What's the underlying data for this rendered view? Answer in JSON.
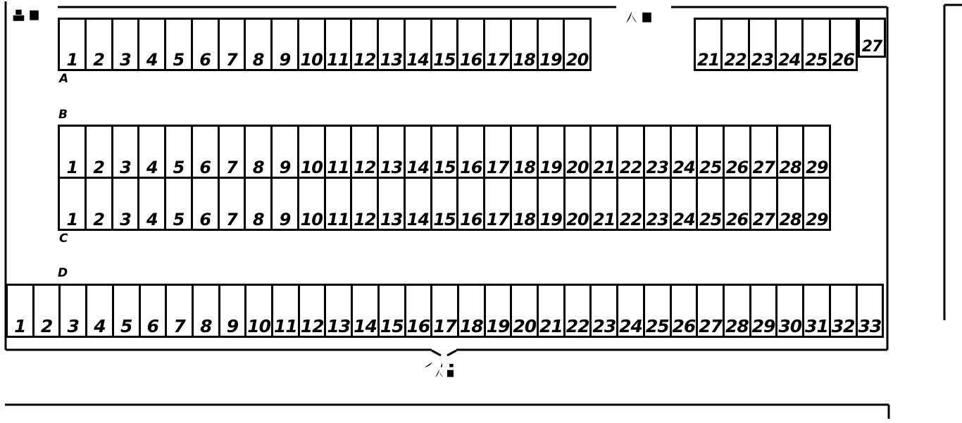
{
  "colors": {
    "line": "#000000",
    "background": "#ffffff",
    "text": "#000000"
  },
  "labels": {
    "exit": "出口",
    "entrance": "入口",
    "pedestrian_entrance_line1": "歩行者用",
    "pedestrian_entrance_line2": "入口"
  },
  "rows": {
    "a": {
      "label": "A",
      "section1_spaces": [
        "1",
        "2",
        "3",
        "4",
        "5",
        "6",
        "7",
        "8",
        "9",
        "10",
        "11",
        "12",
        "13",
        "14",
        "15",
        "16",
        "17",
        "18",
        "19",
        "20"
      ],
      "section2_spaces": [
        "21",
        "22",
        "23",
        "24",
        "25",
        "26"
      ],
      "section3_spaces": [
        "27"
      ]
    },
    "b": {
      "label": "B",
      "spaces": [
        "1",
        "2",
        "3",
        "4",
        "5",
        "6",
        "7",
        "8",
        "9",
        "10",
        "11",
        "12",
        "13",
        "14",
        "15",
        "16",
        "17",
        "18",
        "19",
        "20",
        "21",
        "22",
        "23",
        "24",
        "25",
        "26",
        "27",
        "28",
        "29"
      ]
    },
    "c": {
      "label": "C",
      "spaces": [
        "1",
        "2",
        "3",
        "4",
        "5",
        "6",
        "7",
        "8",
        "9",
        "10",
        "11",
        "12",
        "13",
        "14",
        "15",
        "16",
        "17",
        "18",
        "19",
        "20",
        "21",
        "22",
        "23",
        "24",
        "25",
        "26",
        "27",
        "28",
        "29"
      ]
    },
    "d": {
      "label": "D",
      "spaces": [
        "1",
        "2",
        "3",
        "4",
        "5",
        "6",
        "7",
        "8",
        "9",
        "10",
        "11",
        "12",
        "13",
        "14",
        "15",
        "16",
        "17",
        "18",
        "19",
        "20",
        "21",
        "22",
        "23",
        "24",
        "25",
        "26",
        "27",
        "28",
        "29",
        "30",
        "31",
        "32",
        "33"
      ]
    }
  }
}
